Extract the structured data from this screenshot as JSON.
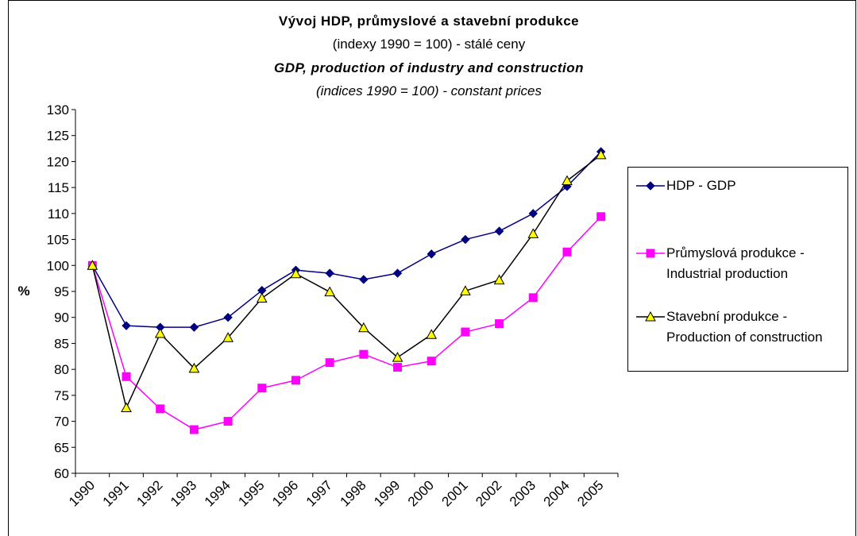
{
  "chart_data": {
    "type": "line",
    "title": "Vývoj HDP, průmyslové a stavební produkce",
    "subtitle": "(indexy 1990 = 100) - stálé ceny",
    "title_en": "GDP, production of industry and construction",
    "subtitle_en": "(indices 1990 = 100) - constant prices",
    "y_label": "%",
    "categories": [
      "1990",
      "1991",
      "1992",
      "1993",
      "1994",
      "1995",
      "1996",
      "1997",
      "1998",
      "1999",
      "2000",
      "2001",
      "2002",
      "2003",
      "2004",
      "2005"
    ],
    "series": [
      {
        "name": "HDP - GDP",
        "color": "#000080",
        "marker": "diamond",
        "marker_color": "#000080",
        "values": [
          100,
          88.4,
          88.1,
          88.1,
          90,
          95.2,
          99.1,
          98.5,
          97.3,
          98.5,
          102.2,
          105,
          106.6,
          110,
          115.2,
          121.9
        ]
      },
      {
        "name": "Průmyslová produkce - Industrial production",
        "color": "#ff00ff",
        "marker": "square",
        "marker_color": "#ff00ff",
        "values": [
          100,
          78.6,
          72.4,
          68.4,
          70,
          76.4,
          77.9,
          81.3,
          82.9,
          80.4,
          81.6,
          87.2,
          88.8,
          93.8,
          102.6,
          109.4
        ]
      },
      {
        "name": "Stavební produkce - Production of construction",
        "color": "#000000",
        "marker": "triangle",
        "marker_color": "#ffff00",
        "values": [
          100,
          72.6,
          86.9,
          80.2,
          86.1,
          93.7,
          98.4,
          94.9,
          88,
          82.3,
          86.7,
          95.1,
          97.2,
          106.1,
          116.3,
          121.3
        ]
      }
    ],
    "ylim": [
      60,
      130
    ],
    "yticks": [
      60,
      65,
      70,
      75,
      80,
      85,
      90,
      95,
      100,
      105,
      110,
      115,
      120,
      125,
      130
    ],
    "grid": false,
    "legend": "right"
  }
}
